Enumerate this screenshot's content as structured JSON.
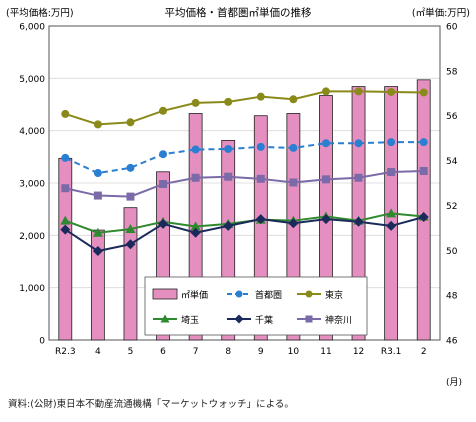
{
  "chart_data": {
    "type": "bar+line",
    "title": "平均価格・首都圏㎡単価の推移",
    "left_axis_label": "(平均価格:万円)",
    "right_axis_label": "(㎡単価:万円)",
    "x_unit_label": "(月)",
    "categories": [
      "R2.3",
      "4",
      "5",
      "6",
      "7",
      "8",
      "9",
      "10",
      "11",
      "12",
      "R3.1",
      "2"
    ],
    "left_ticks": [
      "0",
      "1,000",
      "2,000",
      "3,000",
      "4,000",
      "5,000",
      "6,000"
    ],
    "right_ticks": [
      "46",
      "48",
      "50",
      "52",
      "54",
      "56",
      "58",
      "60"
    ],
    "ylim_left": [
      0,
      6000
    ],
    "ylim_right": [
      46,
      60
    ],
    "grid": "horizontal",
    "legend_position": "bottom-center",
    "bar_series": {
      "name": "㎡単価",
      "axis": "right",
      "color": "#e58fc0",
      "values": [
        54.1,
        50.9,
        51.9,
        53.5,
        56.1,
        54.9,
        56.0,
        56.1,
        56.9,
        57.3,
        57.3,
        57.6
      ]
    },
    "line_series": [
      {
        "name": "首都圏",
        "axis": "left",
        "color": "#2a7fd0",
        "dashed": true,
        "marker": "circle",
        "values": [
          3480,
          3190,
          3290,
          3550,
          3640,
          3650,
          3690,
          3670,
          3760,
          3760,
          3780,
          3780
        ]
      },
      {
        "name": "東京",
        "axis": "left",
        "color": "#8a8a1a",
        "dashed": false,
        "marker": "circle",
        "values": [
          4320,
          4120,
          4160,
          4380,
          4530,
          4550,
          4650,
          4600,
          4750,
          4750,
          4740,
          4730
        ]
      },
      {
        "name": "埼玉",
        "axis": "left",
        "color": "#2f8a2f",
        "dashed": false,
        "marker": "triangle",
        "values": [
          2280,
          2050,
          2120,
          2260,
          2170,
          2220,
          2300,
          2280,
          2360,
          2280,
          2420,
          2360
        ]
      },
      {
        "name": "千葉",
        "axis": "left",
        "color": "#1a2a5a",
        "dashed": false,
        "marker": "diamond",
        "values": [
          2110,
          1700,
          1830,
          2220,
          2050,
          2180,
          2310,
          2230,
          2310,
          2260,
          2180,
          2350
        ]
      },
      {
        "name": "神奈川",
        "axis": "left",
        "color": "#7a6aa8",
        "dashed": false,
        "marker": "square",
        "values": [
          2900,
          2760,
          2740,
          2980,
          3100,
          3120,
          3080,
          3010,
          3070,
          3100,
          3210,
          3230
        ]
      }
    ]
  },
  "source_note": "資料:(公財)東日本不動産流通機構「マーケットウォッチ」による。"
}
